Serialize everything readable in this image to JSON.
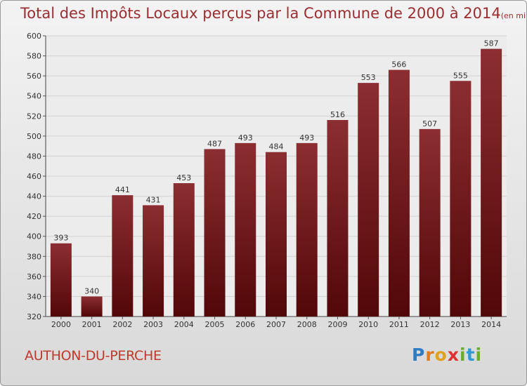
{
  "title": "Total des Impôts Locaux perçus par la Commune de 2000 à 2014",
  "title_unit": "(en milliers d'€)",
  "commune": "AUTHON-DU-PERCHE",
  "logo": {
    "letters": [
      "P",
      "r",
      "o",
      "x",
      "i",
      "t",
      "i"
    ],
    "colors": [
      "#2e7cc4",
      "#e07b20",
      "#e0a020",
      "#e03030",
      "#6aac2f",
      "#2e9ad4",
      "#6aac2f"
    ]
  },
  "chart_data": {
    "type": "bar",
    "title": "Total des Impôts Locaux perçus par la Commune de 2000 à 2014",
    "xlabel": "",
    "ylabel": "",
    "categories": [
      "2000",
      "2001",
      "2002",
      "2003",
      "2004",
      "2005",
      "2006",
      "2007",
      "2008",
      "2009",
      "2010",
      "2011",
      "2012",
      "2013",
      "2014"
    ],
    "values": [
      393,
      340,
      441,
      431,
      453,
      487,
      493,
      484,
      493,
      516,
      553,
      566,
      507,
      555,
      587
    ],
    "ylim": [
      320,
      600
    ],
    "yticks": [
      320,
      340,
      360,
      380,
      400,
      420,
      440,
      460,
      480,
      500,
      520,
      540,
      560,
      580,
      600
    ],
    "grid": true,
    "bar_color": "#7a1a1c"
  }
}
